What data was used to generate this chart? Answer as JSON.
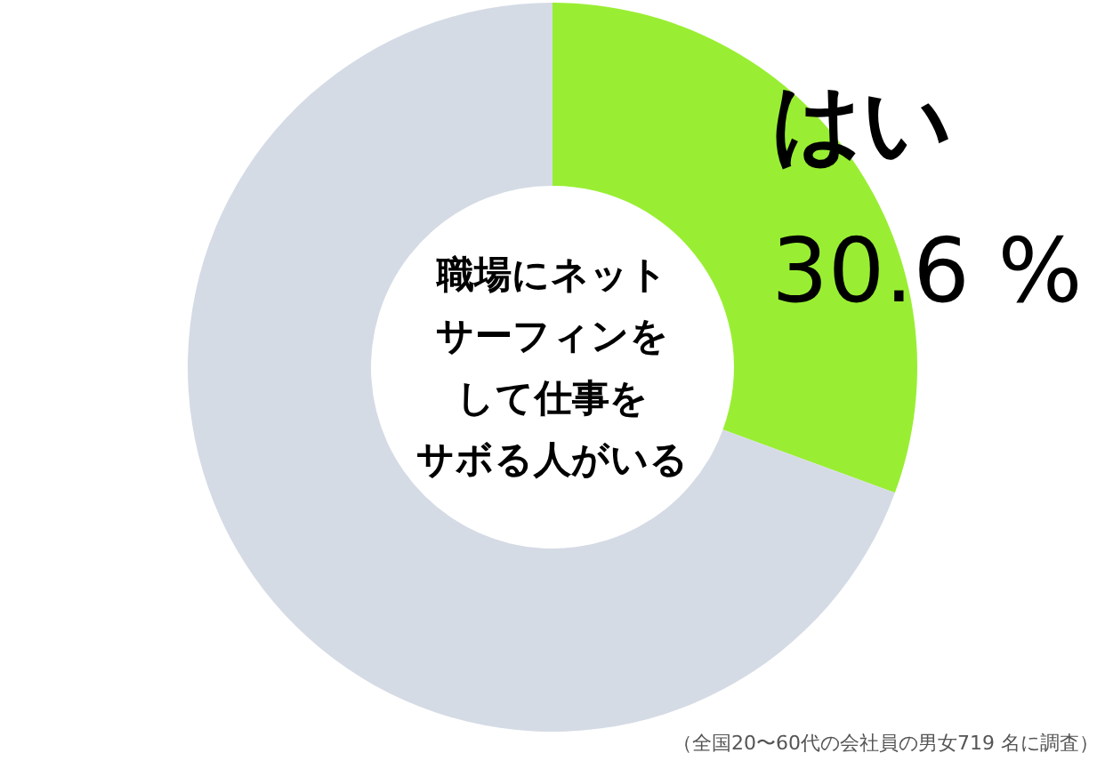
{
  "chart_data": {
    "type": "donut",
    "title": "職場にネットサーフィンをして仕事をサボる人がいる",
    "categories": [
      "はい",
      null
    ],
    "values": [
      30.6,
      69.4
    ],
    "colors": [
      "#99ee33",
      "#d5dbe5"
    ],
    "value_labels": [
      "30.6 %",
      null
    ],
    "annotations": [
      "（全国20〜60代の会社員の男女719 名に調査）"
    ]
  }
}
